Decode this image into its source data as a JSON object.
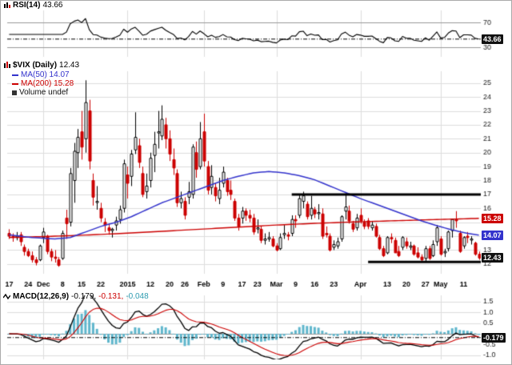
{
  "colors": {
    "up": "#000000",
    "down": "#cc0000",
    "ma50": "#3333cc",
    "ma200": "#cc0000",
    "rsi_line": "#000000",
    "macd_hist": "#5fb6cc",
    "macd_line": "#000000",
    "macd_signal": "#cc0000",
    "grid": "#dddddd",
    "grid_dark": "#999999",
    "axis_text": "#222222"
  },
  "legend": {
    "rsi_label": "RSI(14)",
    "rsi_value": "43.66",
    "price_label": "$VIX (Daily)",
    "price_value": "12.43",
    "ma50_label": "MA(50) 14.07",
    "ma200_label": "MA(200) 15.28",
    "volume_label": "Volume undef",
    "macd_label": "MACD(12,26,9)",
    "macd_v1": "-0.179,",
    "macd_v2": "-0.131,",
    "macd_v3": "-0.048"
  },
  "badges": {
    "rsi": {
      "text": "43.66",
      "value": 43.66,
      "panel": "rsi",
      "color": "#111111"
    },
    "ma200": {
      "text": "15.28",
      "value": 15.28,
      "panel": "price",
      "color": "#cc0000"
    },
    "ma50": {
      "text": "14.07",
      "value": 14.07,
      "panel": "price",
      "color": "#3333cc"
    },
    "close": {
      "text": "12.43",
      "value": 12.43,
      "panel": "price",
      "color": "#111111"
    },
    "macd": {
      "text": "-0.179",
      "value": -0.179,
      "panel": "macd",
      "color": "#111111"
    }
  },
  "chart_data": [
    {
      "type": "line",
      "panel": "rsi",
      "title": "RSI(14)",
      "last_value": 43.66,
      "ylim": [
        15,
        90
      ],
      "gridlines": [
        70,
        30
      ],
      "tick_labels": [
        [
          "70",
          70
        ],
        [
          "30",
          30
        ]
      ],
      "note": "RSI(14) computed from the daily closes of the candlestick series below"
    },
    {
      "type": "candlestick",
      "panel": "price",
      "title": "$VIX (Daily)",
      "last_close": 12.43,
      "ylim": [
        11.3,
        25.85
      ],
      "grid_values": [
        12,
        13,
        14,
        15,
        16,
        17,
        18,
        19,
        20,
        21,
        22,
        23,
        24,
        25
      ],
      "tick_labels": [
        [
          "25",
          25
        ],
        [
          "24",
          24
        ],
        [
          "23",
          23
        ],
        [
          "22",
          22
        ],
        [
          "21",
          21
        ],
        [
          "20",
          20
        ],
        [
          "19",
          19
        ],
        [
          "18",
          18
        ],
        [
          "17",
          17
        ],
        [
          "16",
          16
        ],
        [
          "13",
          13
        ],
        [
          "12",
          12
        ]
      ],
      "x_labels": [
        [
          0,
          "17"
        ],
        [
          5,
          "24"
        ],
        [
          9,
          "Dec"
        ],
        [
          14,
          "8"
        ],
        [
          19,
          "15"
        ],
        [
          24,
          "22"
        ],
        [
          31,
          "2015"
        ],
        [
          37,
          "12"
        ],
        [
          42,
          "20"
        ],
        [
          46,
          "26"
        ],
        [
          51,
          "Feb"
        ],
        [
          56,
          "9"
        ],
        [
          61,
          "17"
        ],
        [
          65,
          "23"
        ],
        [
          70,
          "Mar"
        ],
        [
          75,
          "9"
        ],
        [
          80,
          "16"
        ],
        [
          85,
          "23"
        ],
        [
          92,
          "Apr"
        ],
        [
          99,
          "13"
        ],
        [
          104,
          "20"
        ],
        [
          109,
          "27"
        ],
        [
          113,
          "May"
        ],
        [
          119,
          "11"
        ]
      ],
      "month_gridline_indices": [
        9,
        31,
        51,
        70,
        92,
        113
      ],
      "ohlc": [
        [
          14.2,
          14.5,
          13.8,
          14.0
        ],
        [
          14.0,
          14.2,
          13.6,
          13.9
        ],
        [
          13.9,
          14.3,
          13.7,
          14.0
        ],
        [
          14.1,
          14.3,
          13.3,
          13.6
        ],
        [
          13.2,
          13.4,
          12.6,
          12.9
        ],
        [
          12.9,
          13.1,
          12.5,
          12.6
        ],
        [
          12.6,
          12.9,
          12.1,
          12.3
        ],
        [
          12.3,
          12.5,
          11.9,
          12.1
        ],
        [
          12.3,
          13.4,
          12.2,
          13.3
        ],
        [
          13.9,
          14.6,
          13.5,
          14.3
        ],
        [
          14.0,
          14.1,
          12.7,
          12.9
        ],
        [
          12.9,
          13.1,
          12.2,
          12.5
        ],
        [
          12.5,
          13.0,
          12.1,
          12.4
        ],
        [
          12.3,
          12.5,
          11.8,
          11.9
        ],
        [
          12.4,
          14.4,
          12.3,
          14.2
        ],
        [
          15.3,
          15.9,
          13.8,
          14.9
        ],
        [
          15.0,
          18.9,
          14.7,
          18.5
        ],
        [
          18.0,
          20.7,
          16.4,
          20.1
        ],
        [
          20.0,
          21.7,
          18.9,
          21.1
        ],
        [
          21.5,
          23.0,
          19.5,
          20.4
        ],
        [
          21.0,
          25.2,
          20.0,
          23.6
        ],
        [
          23.0,
          23.8,
          18.8,
          19.4
        ],
        [
          18.0,
          18.5,
          16.2,
          16.8
        ],
        [
          16.5,
          17.6,
          15.9,
          16.5
        ],
        [
          16.0,
          16.4,
          15.0,
          15.3
        ],
        [
          15.0,
          15.3,
          14.3,
          14.8
        ],
        [
          14.6,
          14.9,
          14.1,
          14.4
        ],
        [
          14.4,
          14.6,
          13.9,
          14.5
        ],
        [
          14.8,
          15.4,
          14.4,
          15.1
        ],
        [
          15.2,
          16.2,
          14.9,
          15.9
        ],
        [
          16.0,
          19.5,
          15.7,
          19.2
        ],
        [
          18.4,
          19.0,
          16.7,
          17.8
        ],
        [
          18.3,
          20.2,
          17.6,
          19.9
        ],
        [
          20.2,
          22.9,
          19.9,
          21.1
        ],
        [
          20.5,
          21.0,
          18.9,
          19.3
        ],
        [
          18.5,
          19.0,
          16.8,
          17.0
        ],
        [
          17.2,
          18.5,
          16.7,
          17.6
        ],
        [
          18.0,
          20.0,
          17.5,
          19.6
        ],
        [
          19.8,
          21.5,
          18.6,
          20.6
        ],
        [
          21.5,
          23.0,
          20.3,
          21.5
        ],
        [
          21.2,
          23.4,
          20.9,
          22.4
        ],
        [
          22.0,
          22.5,
          20.3,
          21.0
        ],
        [
          21.0,
          21.6,
          19.4,
          19.9
        ],
        [
          19.5,
          20.3,
          18.4,
          18.9
        ],
        [
          18.5,
          18.8,
          16.1,
          16.4
        ],
        [
          16.4,
          17.2,
          16.0,
          16.7
        ],
        [
          16.5,
          16.8,
          15.2,
          15.5
        ],
        [
          16.8,
          17.9,
          16.3,
          17.2
        ],
        [
          17.0,
          20.6,
          16.7,
          20.4
        ],
        [
          20.0,
          20.8,
          18.2,
          18.8
        ],
        [
          19.0,
          22.2,
          18.8,
          21.0
        ],
        [
          21.5,
          22.8,
          19.0,
          19.4
        ],
        [
          19.0,
          19.4,
          17.0,
          17.3
        ],
        [
          17.5,
          19.1,
          17.0,
          18.3
        ],
        [
          17.5,
          17.8,
          16.5,
          16.9
        ],
        [
          16.7,
          18.2,
          16.3,
          17.3
        ],
        [
          17.8,
          19.0,
          17.5,
          18.6
        ],
        [
          18.0,
          18.2,
          16.9,
          17.2
        ],
        [
          17.3,
          18.0,
          16.6,
          17.0
        ],
        [
          16.5,
          16.7,
          15.1,
          15.3
        ],
        [
          15.3,
          15.6,
          14.4,
          14.7
        ],
        [
          15.3,
          16.1,
          14.9,
          15.8
        ],
        [
          15.8,
          16.0,
          15.1,
          15.5
        ],
        [
          15.5,
          15.9,
          15.0,
          15.3
        ],
        [
          15.3,
          15.6,
          14.1,
          14.3
        ],
        [
          14.6,
          15.2,
          14.2,
          14.6
        ],
        [
          14.5,
          14.7,
          13.5,
          13.7
        ],
        [
          13.7,
          14.2,
          13.4,
          13.8
        ],
        [
          13.8,
          14.3,
          13.6,
          13.9
        ],
        [
          13.8,
          14.0,
          13.2,
          13.3
        ],
        [
          13.3,
          13.5,
          12.9,
          13.0
        ],
        [
          13.1,
          14.2,
          13.0,
          13.9
        ],
        [
          14.1,
          14.8,
          13.8,
          14.2
        ],
        [
          14.1,
          14.3,
          13.7,
          14.0
        ],
        [
          14.2,
          15.5,
          14.0,
          15.2
        ],
        [
          15.2,
          15.5,
          14.6,
          15.1
        ],
        [
          15.5,
          17.0,
          15.3,
          16.7
        ],
        [
          16.5,
          17.2,
          16.0,
          16.9
        ],
        [
          16.3,
          16.5,
          15.2,
          15.4
        ],
        [
          15.5,
          16.9,
          15.2,
          16.0
        ],
        [
          15.9,
          16.1,
          15.3,
          15.6
        ],
        [
          15.7,
          16.3,
          15.2,
          15.7
        ],
        [
          15.6,
          16.0,
          13.8,
          14.0
        ],
        [
          14.2,
          14.7,
          13.9,
          14.1
        ],
        [
          14.0,
          14.2,
          12.9,
          13.0
        ],
        [
          13.2,
          13.7,
          13.0,
          13.4
        ],
        [
          13.3,
          13.9,
          13.1,
          13.6
        ],
        [
          13.8,
          15.5,
          13.6,
          15.4
        ],
        [
          15.8,
          17.1,
          15.2,
          16.1
        ],
        [
          15.8,
          16.2,
          14.9,
          15.1
        ],
        [
          14.9,
          15.1,
          14.3,
          14.5
        ],
        [
          14.6,
          15.6,
          14.4,
          15.3
        ],
        [
          15.5,
          16.0,
          14.9,
          15.1
        ],
        [
          15.0,
          15.2,
          14.5,
          14.7
        ],
        [
          15.1,
          15.3,
          14.5,
          14.7
        ],
        [
          14.6,
          15.1,
          14.4,
          14.8
        ],
        [
          14.7,
          14.9,
          13.9,
          14.0
        ],
        [
          13.9,
          14.1,
          13.0,
          13.1
        ],
        [
          13.1,
          13.3,
          12.5,
          12.6
        ],
        [
          12.8,
          14.0,
          12.7,
          13.9
        ],
        [
          13.9,
          14.2,
          13.5,
          13.8
        ],
        [
          13.7,
          13.9,
          12.8,
          12.8
        ],
        [
          12.9,
          13.3,
          12.5,
          12.6
        ],
        [
          13.2,
          14.0,
          13.0,
          13.9
        ],
        [
          13.6,
          13.9,
          13.1,
          13.3
        ],
        [
          13.2,
          13.6,
          13.0,
          13.3
        ],
        [
          13.3,
          13.4,
          12.6,
          12.7
        ],
        [
          12.8,
          13.2,
          12.4,
          12.5
        ],
        [
          12.5,
          12.7,
          12.2,
          12.3
        ],
        [
          12.4,
          13.3,
          12.2,
          13.1
        ],
        [
          13.1,
          13.3,
          12.3,
          12.4
        ],
        [
          12.6,
          13.7,
          12.5,
          13.4
        ],
        [
          13.6,
          14.8,
          13.3,
          14.6
        ],
        [
          13.8,
          14.0,
          12.6,
          12.7
        ],
        [
          12.8,
          13.1,
          12.5,
          12.9
        ],
        [
          13.1,
          14.4,
          12.9,
          14.3
        ],
        [
          14.4,
          15.2,
          13.9,
          15.2
        ],
        [
          15.2,
          15.8,
          14.6,
          15.1
        ],
        [
          14.2,
          14.4,
          12.8,
          12.9
        ],
        [
          13.3,
          14.0,
          13.1,
          13.9
        ],
        [
          14.0,
          14.3,
          13.5,
          13.9
        ],
        [
          13.8,
          14.0,
          13.4,
          13.8
        ],
        [
          13.5,
          13.6,
          12.6,
          12.7
        ],
        [
          12.7,
          12.9,
          12.3,
          12.43
        ]
      ],
      "ma50": {
        "name": "MA(50)",
        "last": 14.07,
        "anchors": [
          [
            0,
            14.1
          ],
          [
            6,
            13.9
          ],
          [
            12,
            13.8
          ],
          [
            16,
            13.9
          ],
          [
            20,
            14.3
          ],
          [
            24,
            14.7
          ],
          [
            28,
            15.0
          ],
          [
            32,
            15.4
          ],
          [
            36,
            15.9
          ],
          [
            40,
            16.4
          ],
          [
            44,
            16.8
          ],
          [
            48,
            17.2
          ],
          [
            52,
            17.6
          ],
          [
            56,
            18.0
          ],
          [
            60,
            18.3
          ],
          [
            64,
            18.55
          ],
          [
            68,
            18.65
          ],
          [
            72,
            18.55
          ],
          [
            76,
            18.35
          ],
          [
            80,
            18.05
          ],
          [
            84,
            17.6
          ],
          [
            88,
            17.15
          ],
          [
            92,
            16.7
          ],
          [
            96,
            16.3
          ],
          [
            100,
            15.9
          ],
          [
            104,
            15.5
          ],
          [
            108,
            15.1
          ],
          [
            112,
            14.75
          ],
          [
            116,
            14.45
          ],
          [
            120,
            14.2
          ],
          [
            123,
            14.07
          ]
        ]
      },
      "ma200": {
        "name": "MA(200)",
        "last": 15.28,
        "anchors": [
          [
            0,
            13.9
          ],
          [
            10,
            13.98
          ],
          [
            20,
            14.08
          ],
          [
            30,
            14.2
          ],
          [
            40,
            14.35
          ],
          [
            50,
            14.5
          ],
          [
            60,
            14.65
          ],
          [
            70,
            14.8
          ],
          [
            80,
            14.92
          ],
          [
            90,
            15.02
          ],
          [
            100,
            15.1
          ],
          [
            110,
            15.18
          ],
          [
            118,
            15.24
          ],
          [
            123,
            15.28
          ]
        ]
      },
      "annotations": [
        {
          "value": 17.0,
          "from_index": 74,
          "to_index": 124
        },
        {
          "value": 12.15,
          "from_index": 94,
          "to_index": 124
        }
      ]
    },
    {
      "type": "macd",
      "panel": "macd",
      "title": "MACD(12,26,9)",
      "last_macd": -0.179,
      "last_signal": -0.131,
      "last_hist": -0.048,
      "ylim": [
        -1.2,
        1.8
      ],
      "grid_values": [
        1.5,
        1.0,
        0.5,
        -0.5,
        -1.0
      ],
      "tick_labels": [
        [
          "1.5",
          1.5
        ],
        [
          "1.0",
          1.0
        ],
        [
          "0.5",
          0.5
        ],
        [
          "-0.5",
          -0.5
        ],
        [
          "-1.0",
          -1.0
        ]
      ],
      "note": "MACD(12,26,9) computed from the daily closes of the candlestick series above"
    }
  ]
}
